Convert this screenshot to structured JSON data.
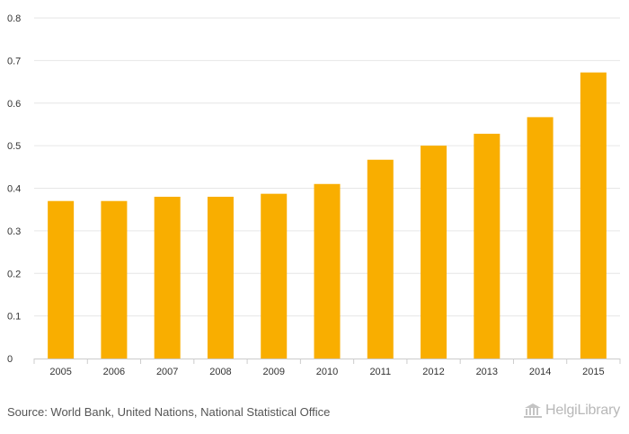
{
  "chart_data": {
    "type": "bar",
    "title": "",
    "xlabel": "",
    "ylabel": "",
    "categories": [
      "2005",
      "2006",
      "2007",
      "2008",
      "2009",
      "2010",
      "2011",
      "2012",
      "2013",
      "2014",
      "2015"
    ],
    "values": [
      0.37,
      0.37,
      0.38,
      0.38,
      0.387,
      0.41,
      0.467,
      0.5,
      0.528,
      0.567,
      0.672
    ],
    "ylim": [
      0,
      0.8
    ],
    "yticks": [
      0,
      0.1,
      0.2,
      0.3,
      0.4,
      0.5,
      0.6,
      0.7,
      0.8
    ],
    "ytick_labels": [
      "0",
      "0.1",
      "0.2",
      "0.3",
      "0.4",
      "0.5",
      "0.6",
      "0.7",
      "0.8"
    ],
    "grid": true,
    "bar_color": "#F9AE00",
    "grid_color": "#E6E6E6"
  },
  "footer": {
    "source": "Source: World Bank, United Nations, National Statistical Office",
    "brand_name": "HelgiLibrary",
    "brand_logo_icon": "helgi-building-icon"
  }
}
